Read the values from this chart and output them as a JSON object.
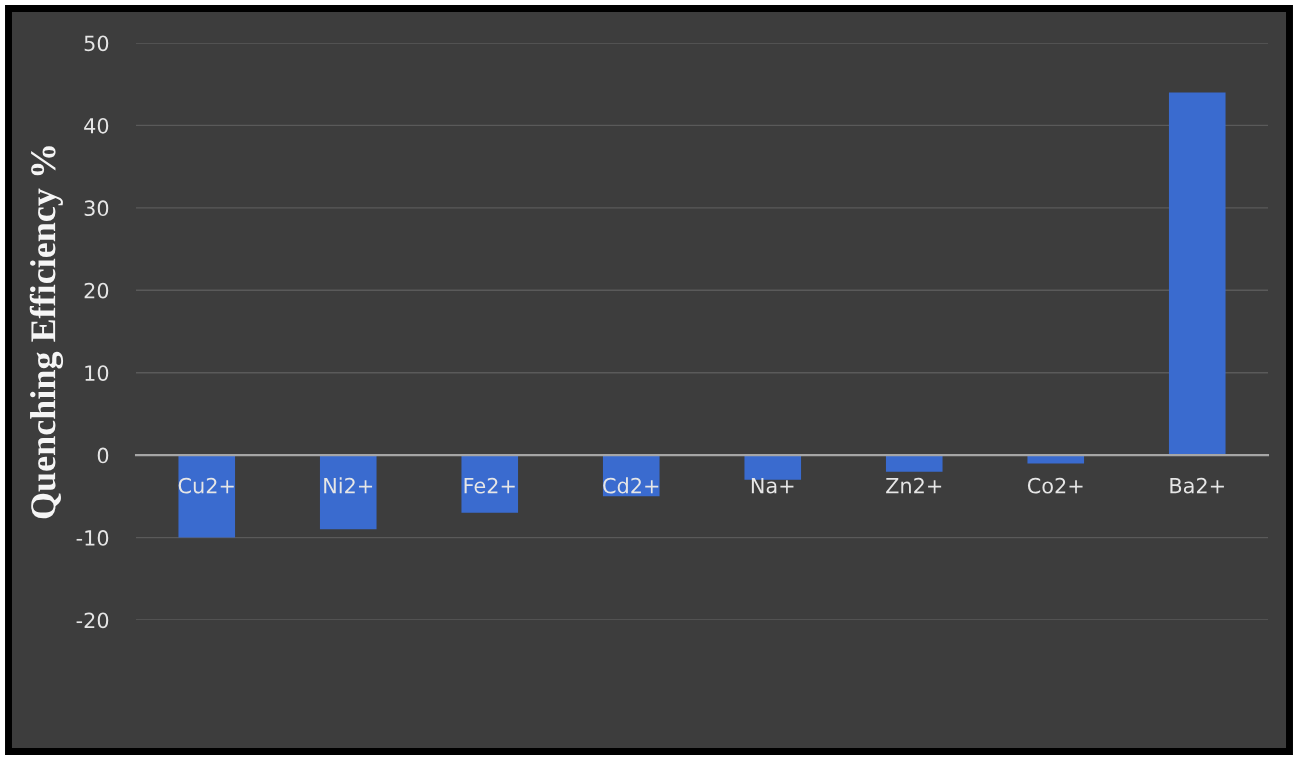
{
  "chart_data": {
    "type": "bar",
    "ylabel": "Quenching Efficiency %",
    "categories": [
      "Cu2+",
      "Ni2+",
      "Fe2+",
      "Cd2+",
      "Na+",
      "Zn2+",
      "Co2+",
      "Ba2+"
    ],
    "values": [
      -10,
      -9,
      -7,
      -5,
      -3,
      -2,
      -1,
      44
    ],
    "color": "#3a6bcf",
    "ylim": [
      -20,
      50
    ],
    "yticks": [
      -20,
      -10,
      0,
      10,
      20,
      30,
      40,
      50
    ],
    "grid": "y"
  }
}
